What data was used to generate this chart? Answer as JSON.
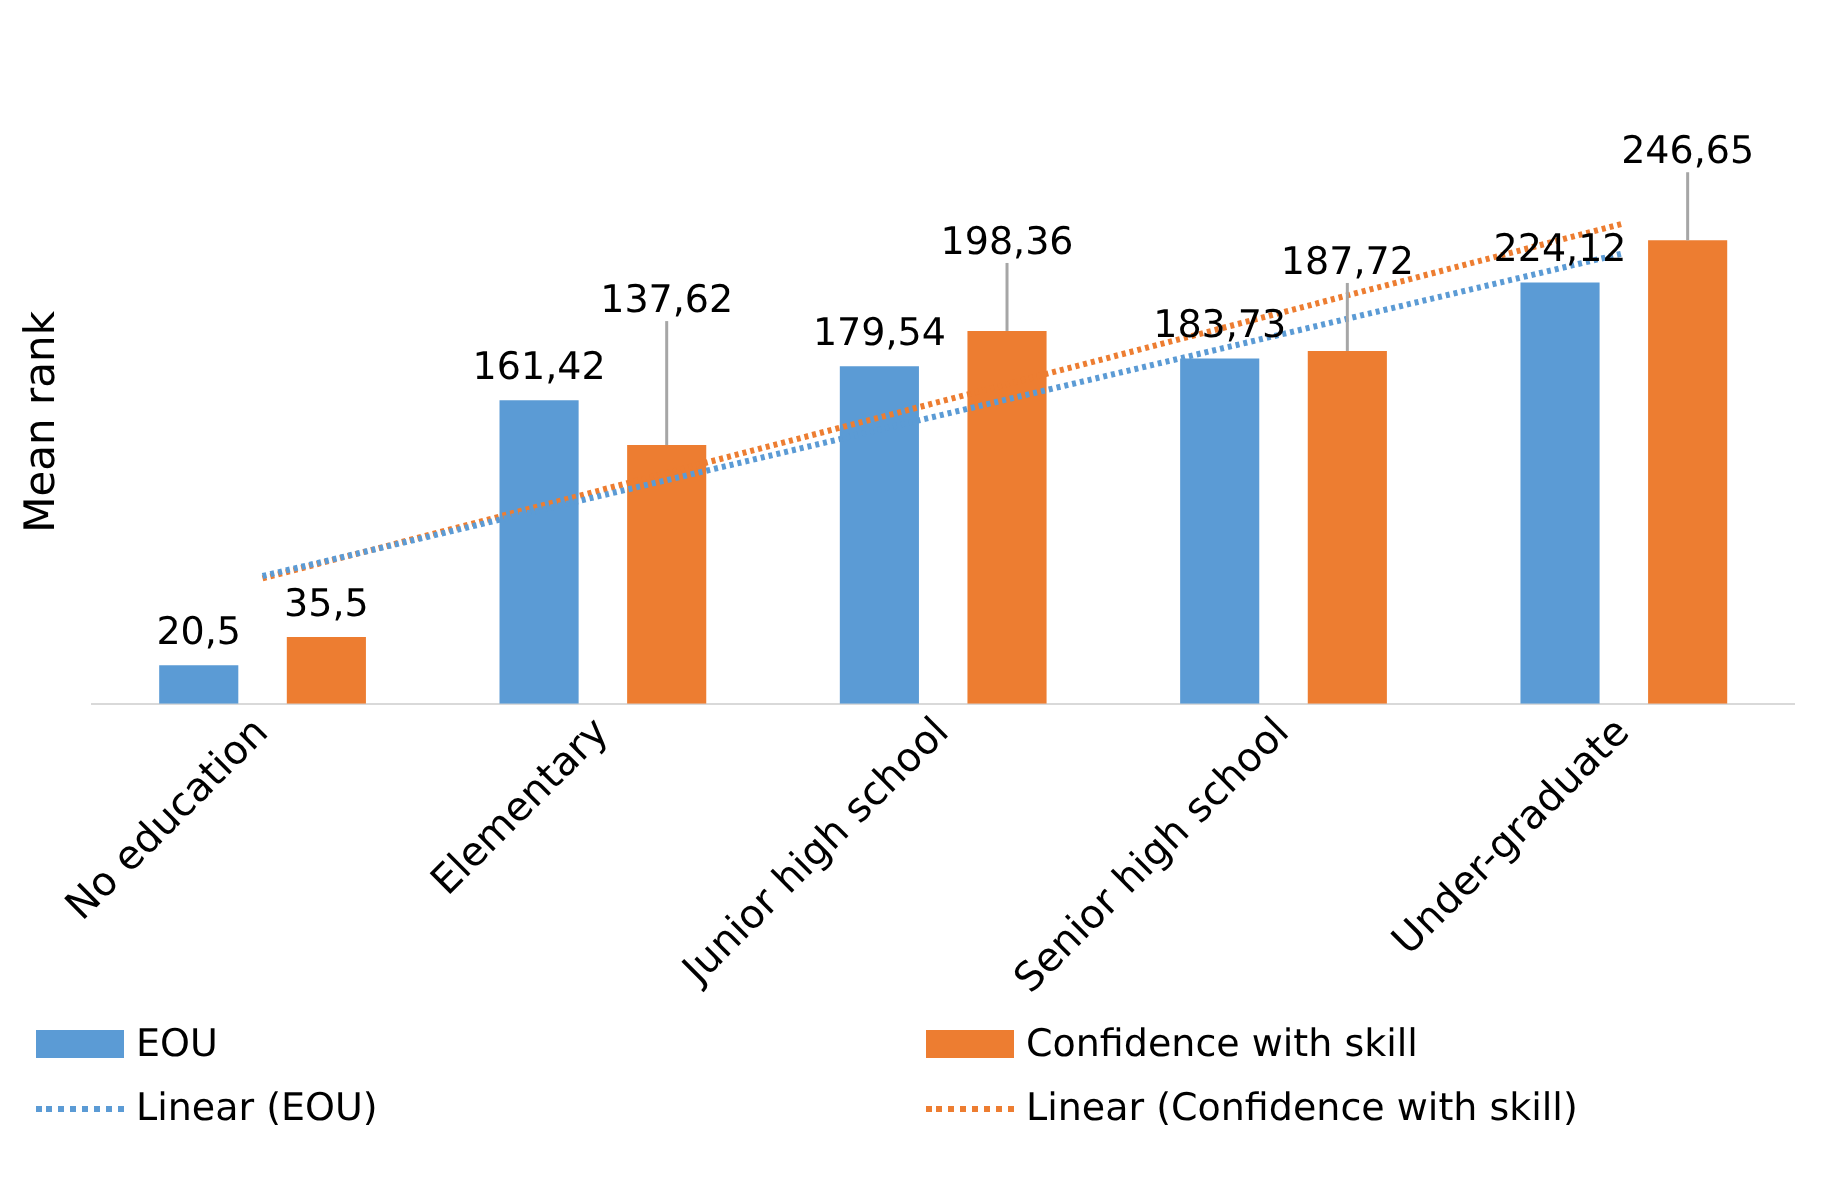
{
  "chart_data": {
    "type": "bar",
    "ylabel": "Mean rank",
    "categories": [
      "No education",
      "Elementary",
      "Junior high school",
      "Senior high school",
      "Under-graduate"
    ],
    "series": [
      {
        "name": "EOU",
        "color": "#5b9bd5",
        "values": [
          20.5,
          161.42,
          179.54,
          183.73,
          224.12
        ],
        "value_labels": [
          "20,5",
          "161,42",
          "179,54",
          "183,73",
          "224,12"
        ]
      },
      {
        "name": "Confidence with skill",
        "color": "#ed7d31",
        "values": [
          35.5,
          137.62,
          198.36,
          187.72,
          246.65
        ],
        "value_labels": [
          "35,5",
          "137,62",
          "198,36",
          "187,72",
          "246,65"
        ]
      },
      {
        "name": "Linear (EOU)",
        "type": "line",
        "line_style": "dotted",
        "color": "#5b9bd5",
        "values": [
          67.95,
          110.91,
          153.86,
          196.82,
          239.77
        ]
      },
      {
        "name": "Linear (Confidence with skill)",
        "type": "line",
        "line_style": "dotted",
        "color": "#ed7d31",
        "values": [
          66.69,
          113.93,
          161.17,
          208.41,
          255.65
        ]
      }
    ],
    "tick_labels": "x",
    "grid": false,
    "legend": "bottom",
    "marker": "none"
  }
}
